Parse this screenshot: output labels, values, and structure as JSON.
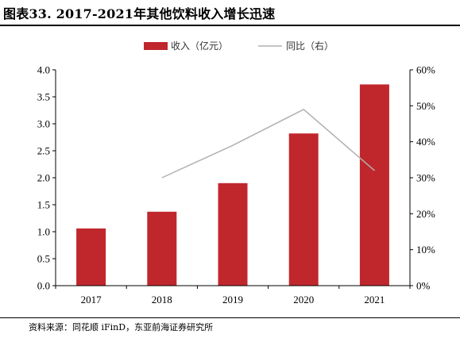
{
  "title": "图表33. 2017-2021年其他饮料收入增长迅速",
  "source": "资料来源：同花顺 iFinD，东亚前海证券研究所",
  "colors": {
    "bar": "#c0272d",
    "line": "#b0b0b0",
    "axis": "#000000"
  },
  "chart_data": {
    "type": "bar",
    "categories": [
      "2017",
      "2018",
      "2019",
      "2020",
      "2021"
    ],
    "series": [
      {
        "name": "收入（亿元）",
        "type": "bar",
        "axis": "left",
        "values": [
          1.06,
          1.37,
          1.9,
          2.82,
          3.73
        ]
      },
      {
        "name": "同比（右）",
        "type": "line",
        "axis": "right",
        "values": [
          null,
          0.3,
          0.39,
          0.49,
          0.32
        ]
      }
    ],
    "ylim_left": [
      0,
      4.0
    ],
    "yticks_left": [
      "0.0",
      "0.5",
      "1.0",
      "1.5",
      "2.0",
      "2.5",
      "3.0",
      "3.5",
      "4.0"
    ],
    "ylim_right": [
      0,
      0.6
    ],
    "yticks_right": [
      "0%",
      "10%",
      "20%",
      "30%",
      "40%",
      "50%",
      "60%"
    ],
    "legend_position": "top-center",
    "grid": false
  }
}
